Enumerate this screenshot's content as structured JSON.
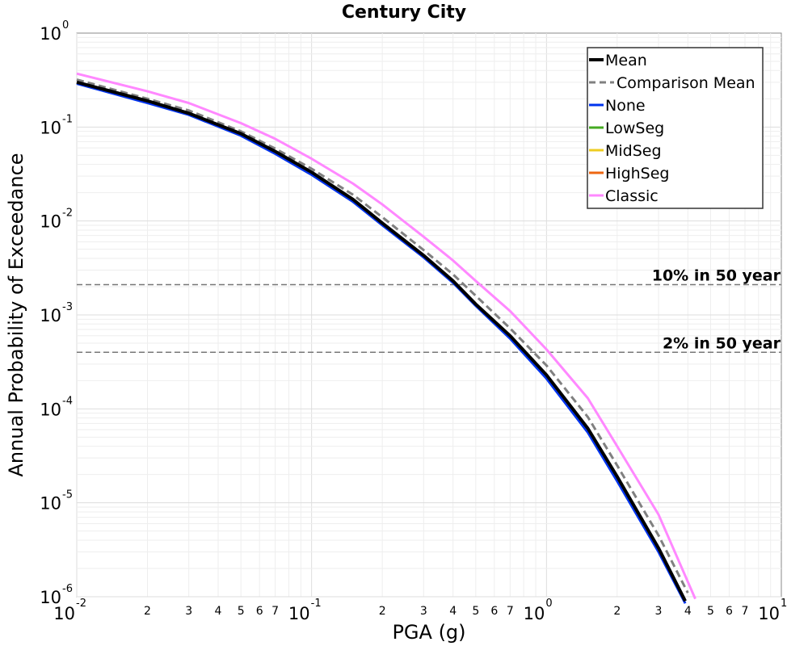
{
  "chart_data": {
    "type": "line",
    "title": "Century City",
    "xlabel": "PGA (g)",
    "ylabel": "Annual Probability of Exceedance",
    "xscale": "log",
    "yscale": "log",
    "xlim": [
      0.01,
      10
    ],
    "ylim": [
      1e-06,
      1
    ],
    "grid": true,
    "legend_placement": "top-right",
    "x_tick_labels": [
      {
        "x": 0.01,
        "base": "10",
        "exp": "-2"
      },
      {
        "x": 0.1,
        "base": "10",
        "exp": "-1"
      },
      {
        "x": 1,
        "base": "10",
        "exp": "0"
      },
      {
        "x": 10,
        "base": "10",
        "exp": "1"
      }
    ],
    "x_minor_labels": [
      "2",
      "3",
      "4",
      "5",
      "6",
      "7"
    ],
    "y_tick_labels": [
      {
        "y": 1,
        "base": "10",
        "exp": "0"
      },
      {
        "y": 0.1,
        "base": "10",
        "exp": "-1"
      },
      {
        "y": 0.01,
        "base": "10",
        "exp": "-2"
      },
      {
        "y": 0.001,
        "base": "10",
        "exp": "-3"
      },
      {
        "y": 0.0001,
        "base": "10",
        "exp": "-4"
      },
      {
        "y": 1e-05,
        "base": "10",
        "exp": "-5"
      },
      {
        "y": 1e-06,
        "base": "10",
        "exp": "-6"
      }
    ],
    "reference_lines": [
      {
        "label": "10% in 50 year",
        "y": 0.0021
      },
      {
        "label": "2% in 50 year",
        "y": 0.0004
      }
    ],
    "series": [
      {
        "name": "Mean",
        "color": "#000000",
        "style": "solid",
        "width": 4,
        "x": [
          0.01,
          0.02,
          0.03,
          0.05,
          0.07,
          0.1,
          0.15,
          0.2,
          0.3,
          0.4,
          0.5,
          0.7,
          1.0,
          1.5,
          2.0,
          3.0,
          3.9
        ],
        "y": [
          0.3,
          0.19,
          0.14,
          0.085,
          0.055,
          0.033,
          0.017,
          0.0095,
          0.0043,
          0.0023,
          0.0013,
          0.0006,
          0.00023,
          6.2e-05,
          1.9e-05,
          3.3e-06,
          9e-07
        ]
      },
      {
        "name": "Comparison Mean",
        "color": "#808080",
        "style": "dashed",
        "width": 3,
        "x": [
          0.01,
          0.02,
          0.03,
          0.05,
          0.07,
          0.1,
          0.15,
          0.2,
          0.3,
          0.4,
          0.5,
          0.7,
          1.0,
          1.5,
          2.0,
          3.0,
          4.0
        ],
        "y": [
          0.32,
          0.2,
          0.15,
          0.09,
          0.059,
          0.036,
          0.019,
          0.011,
          0.0049,
          0.0027,
          0.0016,
          0.00072,
          0.00029,
          8.2e-05,
          2.5e-05,
          4.5e-06,
          1.1e-06
        ]
      },
      {
        "name": "None",
        "color": "#0033ee",
        "style": "solid",
        "width": 3,
        "x": [
          0.01,
          0.02,
          0.03,
          0.05,
          0.07,
          0.1,
          0.15,
          0.2,
          0.3,
          0.4,
          0.5,
          0.7,
          1.0,
          1.5,
          2.0,
          3.0,
          3.9
        ],
        "y": [
          0.29,
          0.18,
          0.135,
          0.081,
          0.052,
          0.031,
          0.016,
          0.009,
          0.0041,
          0.0022,
          0.00125,
          0.00056,
          0.00021,
          5.6e-05,
          1.7e-05,
          3e-06,
          8.5e-07
        ]
      },
      {
        "name": "LowSeg",
        "color": "#44aa22",
        "style": "solid",
        "width": 3,
        "x": [],
        "y": []
      },
      {
        "name": "MidSeg",
        "color": "#eecc22",
        "style": "solid",
        "width": 3,
        "x": [],
        "y": []
      },
      {
        "name": "HighSeg",
        "color": "#ee6611",
        "style": "solid",
        "width": 3,
        "x": [],
        "y": []
      },
      {
        "name": "Classic",
        "color": "#ff88ff",
        "style": "solid",
        "width": 3,
        "x": [
          0.01,
          0.02,
          0.03,
          0.05,
          0.07,
          0.1,
          0.15,
          0.2,
          0.3,
          0.4,
          0.5,
          0.7,
          1.0,
          1.5,
          2.0,
          3.0,
          4.3
        ],
        "y": [
          0.37,
          0.24,
          0.18,
          0.11,
          0.075,
          0.046,
          0.025,
          0.015,
          0.0068,
          0.0038,
          0.0023,
          0.0011,
          0.00043,
          0.00013,
          4e-05,
          7.5e-06,
          9.5e-07
        ]
      }
    ]
  }
}
